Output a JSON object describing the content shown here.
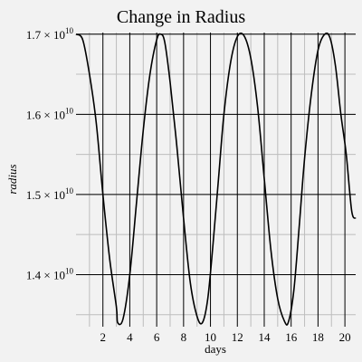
{
  "chart_data": {
    "type": "line",
    "title": "Change in Radius",
    "xlabel": "days",
    "ylabel": "radius",
    "xlim": [
      0.0,
      20.8
    ],
    "ylim": [
      13350000000.0,
      17020000000.0
    ],
    "grid": true,
    "x_ticks": [
      2,
      4,
      6,
      8,
      10,
      12,
      14,
      16,
      18,
      20
    ],
    "y_ticks": [
      {
        "value": 14000000000.0,
        "mantissa": "1.4 × 10",
        "exponent": "10"
      },
      {
        "value": 15000000000.0,
        "mantissa": "1.5 × 10",
        "exponent": "10"
      },
      {
        "value": 16000000000.0,
        "mantissa": "1.6 × 10",
        "exponent": "10"
      },
      {
        "value": 17000000000.0,
        "mantissa": "1.7 × 10",
        "exponent": "10"
      }
    ],
    "series": [
      {
        "color": "#000000",
        "x": [
          0.0,
          0.5,
          1.0,
          1.5,
          2.0,
          2.5,
          3.0,
          3.1,
          3.5,
          4.0,
          4.5,
          5.0,
          5.5,
          6.0,
          6.3,
          6.6,
          7.0,
          7.5,
          8.0,
          8.5,
          9.0,
          9.4,
          9.8,
          10.2,
          10.6,
          11.0,
          11.5,
          12.0,
          12.5,
          13.0,
          13.5,
          14.0,
          14.5,
          15.0,
          15.5,
          15.8,
          16.2,
          16.6,
          17.0,
          17.5,
          18.0,
          18.5,
          18.9,
          19.3,
          19.7,
          20.1,
          20.5,
          20.8
        ],
        "y": [
          17000000000.0,
          16930000000.0,
          16500000000.0,
          15900000000.0,
          15000000000.0,
          14200000000.0,
          13600000000.0,
          13400000000.0,
          13450000000.0,
          14000000000.0,
          14900000000.0,
          15800000000.0,
          16500000000.0,
          16930000000.0,
          17000000000.0,
          16900000000.0,
          16400000000.0,
          15600000000.0,
          14700000000.0,
          13900000000.0,
          13480000000.0,
          13400000000.0,
          13700000000.0,
          14400000000.0,
          15200000000.0,
          16000000000.0,
          16650000000.0,
          16970000000.0,
          16980000000.0,
          16700000000.0,
          16100000000.0,
          15200000000.0,
          14300000000.0,
          13700000000.0,
          13420000000.0,
          13410000000.0,
          13800000000.0,
          14600000000.0,
          15450000000.0,
          16250000000.0,
          16800000000.0,
          17000000000.0,
          16950000000.0,
          16600000000.0,
          16000000000.0,
          15500000000.0,
          14800000000.0,
          14700000000.0
        ]
      }
    ]
  }
}
